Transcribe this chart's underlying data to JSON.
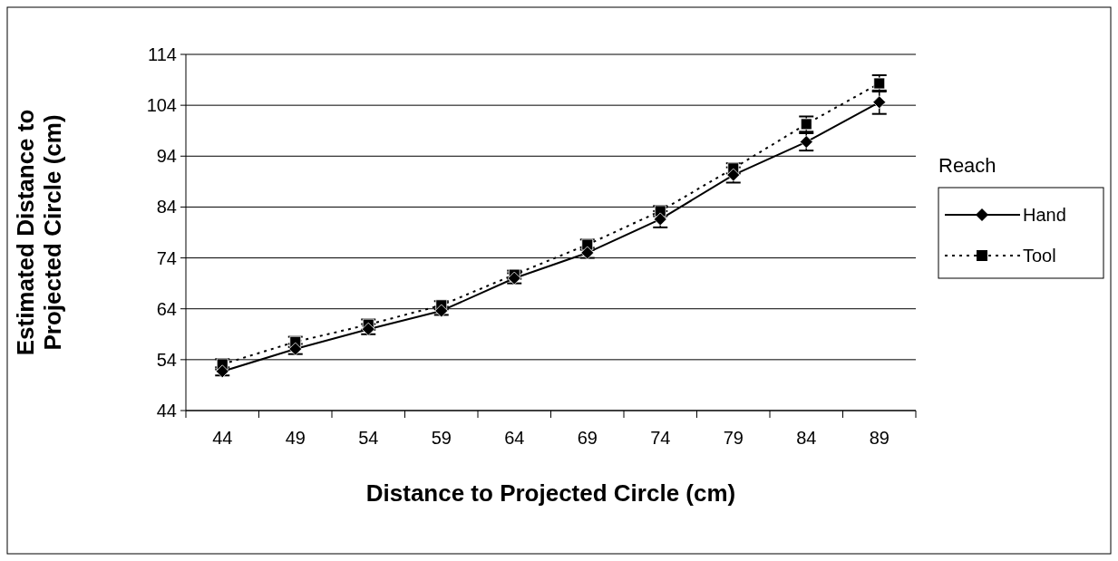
{
  "chart_data": {
    "type": "line",
    "xlabel": "Distance to Projected Circle (cm)",
    "ylabel": "Estimated Distance to Projected Circle (cm)",
    "legend_title": "Reach",
    "categories": [
      "44",
      "49",
      "54",
      "59",
      "64",
      "69",
      "74",
      "79",
      "84",
      "89"
    ],
    "series": [
      {
        "name": "Hand",
        "color": "#000000",
        "marker": "diamond",
        "line_style": "solid",
        "values": [
          51.7,
          56.1,
          60.0,
          63.6,
          70.0,
          75.0,
          81.6,
          90.3,
          96.8,
          104.6
        ],
        "errors": [
          0.8,
          1,
          1,
          0.8,
          1,
          1,
          1.6,
          1.5,
          1.7,
          2.3
        ]
      },
      {
        "name": "Tool",
        "color": "#000000",
        "marker": "square",
        "line_style": "dotted",
        "values": [
          53.1,
          57.5,
          60.9,
          64.7,
          70.7,
          76.6,
          83.2,
          91.6,
          100.3,
          108.3
        ],
        "errors": [
          1,
          1,
          1,
          0.8,
          0.8,
          1,
          1,
          1,
          1.5,
          1.6
        ]
      }
    ],
    "ylim": [
      44,
      114
    ],
    "yticks": [
      44,
      54,
      64,
      74,
      84,
      94,
      104,
      114
    ],
    "grid": "y",
    "legend": "right"
  }
}
